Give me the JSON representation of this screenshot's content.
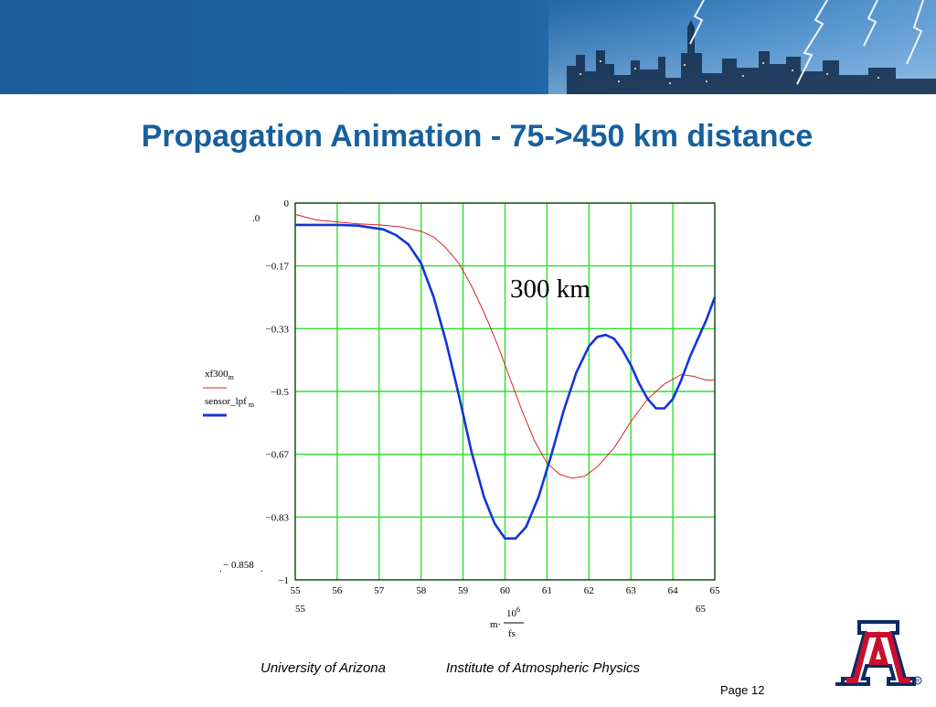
{
  "header": {
    "title": "Propagation Animation - 75->450 km distance"
  },
  "overlay_label": "300  km",
  "footer": {
    "university": "University of Arizona",
    "institute": "Institute of Atmospheric Physics",
    "page": "Page 12"
  },
  "colors": {
    "title": "#17609e",
    "banner": "#1e63a3",
    "grid": "#2ee02e",
    "series_red": "#e32020",
    "series_blue": "#1434d8"
  },
  "chart_data": {
    "type": "line",
    "xlim": [
      55,
      65
    ],
    "ylim": [
      -1,
      0
    ],
    "x_ticks": [
      "55",
      "56",
      "57",
      "58",
      "59",
      "60",
      "61",
      "62",
      "63",
      "64",
      "65"
    ],
    "y_ticks": [
      "0",
      "−0.17",
      "−0.33",
      "−0.5",
      "−0.67",
      "−0.83",
      "−1"
    ],
    "y_top_extra": ".0",
    "y_bottom_extra": "− 0.858",
    "x_range_labels": {
      "left": "55",
      "right": "65"
    },
    "xlabel": {
      "prefix": "m·",
      "numerator": "10",
      "exponent": "6",
      "denominator": "fs"
    },
    "grid": true,
    "legend": [
      {
        "name": "xf300",
        "subscript": "m"
      },
      {
        "name": "sensor_lpf",
        "subscript": "m"
      }
    ],
    "series": [
      {
        "legend_index": 0,
        "color": "#e32020",
        "x": [
          55,
          55.5,
          56,
          56.5,
          57,
          57.5,
          58,
          58.3,
          58.6,
          58.9,
          59.2,
          59.5,
          59.8,
          60.1,
          60.4,
          60.7,
          61,
          61.3,
          61.6,
          61.9,
          62.2,
          62.6,
          63,
          63.4,
          63.8,
          64.2,
          64.5,
          64.8,
          65
        ],
        "y": [
          -0.03,
          -0.045,
          -0.05,
          -0.055,
          -0.058,
          -0.063,
          -0.075,
          -0.09,
          -0.12,
          -0.16,
          -0.22,
          -0.29,
          -0.37,
          -0.46,
          -0.55,
          -0.63,
          -0.69,
          -0.72,
          -0.73,
          -0.725,
          -0.7,
          -0.65,
          -0.58,
          -0.52,
          -0.48,
          -0.455,
          -0.46,
          -0.47,
          -0.47
        ]
      },
      {
        "legend_index": 1,
        "color": "#1434d8",
        "x": [
          55,
          55.5,
          56,
          56.5,
          56.8,
          57.1,
          57.4,
          57.7,
          58,
          58.3,
          58.6,
          58.9,
          59.2,
          59.5,
          59.75,
          60,
          60.25,
          60.5,
          60.8,
          61.1,
          61.4,
          61.7,
          62,
          62.2,
          62.4,
          62.6,
          62.8,
          63,
          63.2,
          63.4,
          63.6,
          63.8,
          64,
          64.2,
          64.4,
          64.6,
          64.8,
          65
        ],
        "y": [
          -0.058,
          -0.058,
          -0.058,
          -0.06,
          -0.065,
          -0.07,
          -0.085,
          -0.11,
          -0.16,
          -0.25,
          -0.37,
          -0.51,
          -0.66,
          -0.78,
          -0.85,
          -0.89,
          -0.89,
          -0.86,
          -0.78,
          -0.67,
          -0.55,
          -0.45,
          -0.38,
          -0.355,
          -0.35,
          -0.36,
          -0.39,
          -0.43,
          -0.48,
          -0.52,
          -0.545,
          -0.545,
          -0.52,
          -0.47,
          -0.41,
          -0.36,
          -0.31,
          -0.25
        ]
      }
    ]
  }
}
